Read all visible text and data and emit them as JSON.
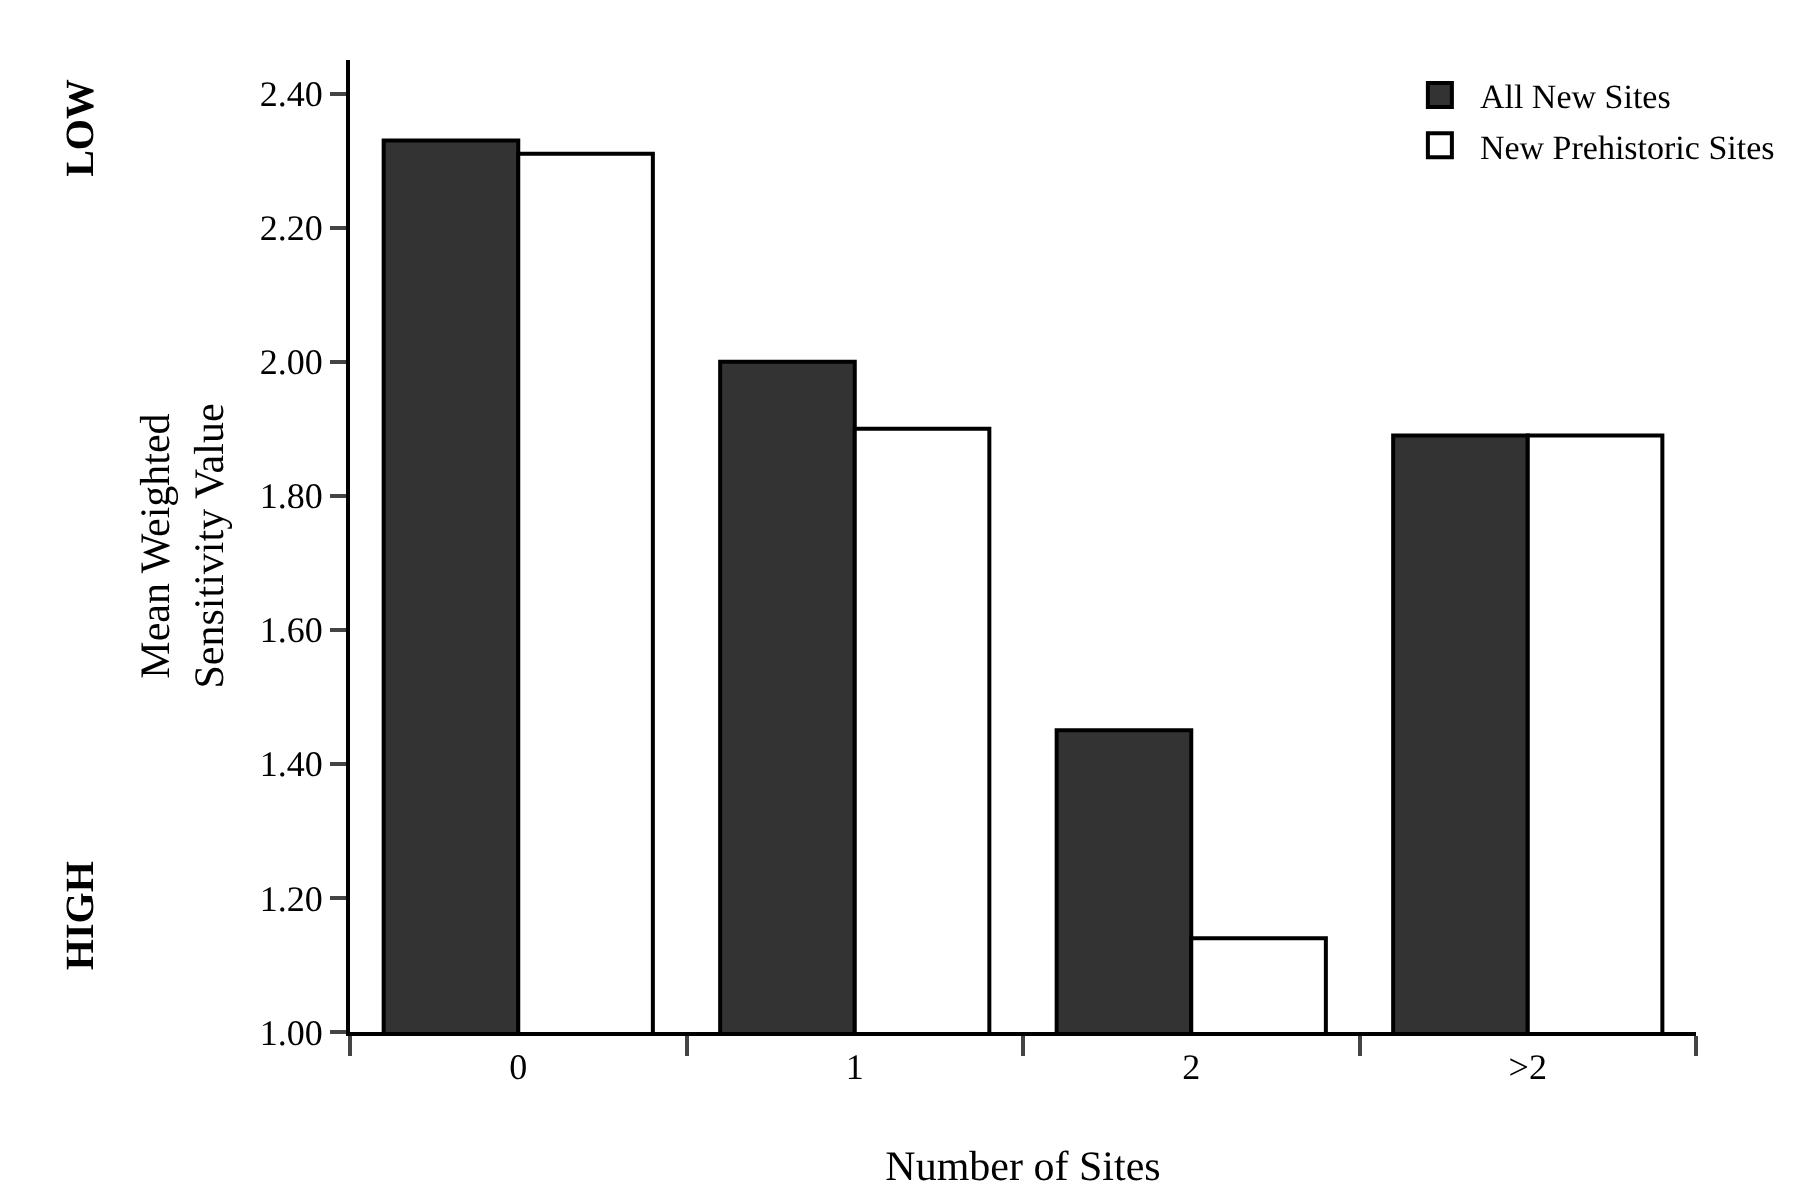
{
  "chart_data": {
    "type": "bar",
    "categories": [
      "0",
      "1",
      "2",
      ">2"
    ],
    "series": [
      {
        "name": "All New Sites",
        "color": "#333333",
        "values": [
          2.33,
          2.0,
          1.45,
          1.89
        ]
      },
      {
        "name": "New Prehistoric Sites",
        "color": "#ffffff",
        "values": [
          2.31,
          1.9,
          1.14,
          1.89
        ]
      }
    ],
    "xlabel": "Number of Sites",
    "ylabel": "Mean Weighted\nSensitivity Value",
    "ylim": [
      1.0,
      2.45
    ],
    "yticks": [
      {
        "value": 1.0,
        "label": "1.00"
      },
      {
        "value": 1.2,
        "label": "1.20"
      },
      {
        "value": 1.4,
        "label": "1.40"
      },
      {
        "value": 1.6,
        "label": "1.60"
      },
      {
        "value": 1.8,
        "label": "1.80"
      },
      {
        "value": 2.0,
        "label": "2.00"
      },
      {
        "value": 2.2,
        "label": "2.20"
      },
      {
        "value": 2.4,
        "label": "2.40"
      }
    ],
    "annotations": [
      "LOW",
      "HIGH"
    ],
    "grid": false,
    "legend": "top right"
  }
}
